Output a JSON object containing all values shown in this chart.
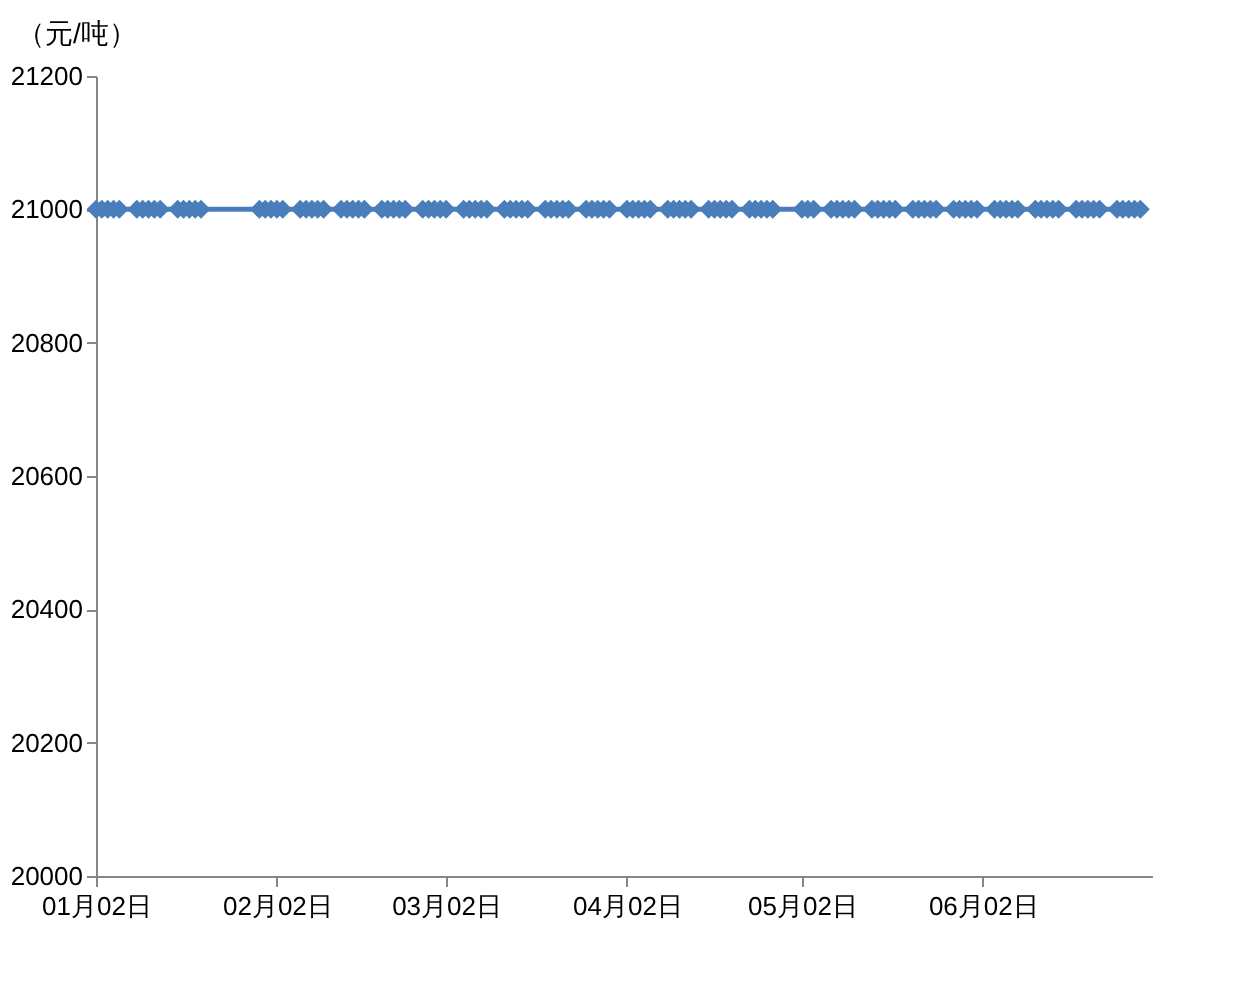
{
  "chart_data": {
    "type": "line",
    "ylabel": "（元/吨）",
    "marker": "diamond",
    "line_style": "solid",
    "grid": false,
    "x": [
      "--01-02",
      "--01-03",
      "--01-04",
      "--01-05",
      "--01-06",
      "--01-09",
      "--01-10",
      "--01-11",
      "--01-12",
      "--01-13",
      "--01-16",
      "--01-17",
      "--01-18",
      "--01-19",
      "--01-20",
      "--01-30",
      "--01-31",
      "--02-01",
      "--02-02",
      "--02-03",
      "--02-06",
      "--02-07",
      "--02-08",
      "--02-09",
      "--02-10",
      "--02-13",
      "--02-14",
      "--02-15",
      "--02-16",
      "--02-17",
      "--02-20",
      "--02-21",
      "--02-22",
      "--02-23",
      "--02-24",
      "--02-27",
      "--02-28",
      "--02-29",
      "--03-01",
      "--03-02",
      "--03-05",
      "--03-06",
      "--03-07",
      "--03-08",
      "--03-09",
      "--03-12",
      "--03-13",
      "--03-14",
      "--03-15",
      "--03-16",
      "--03-19",
      "--03-20",
      "--03-21",
      "--03-22",
      "--03-23",
      "--03-26",
      "--03-27",
      "--03-28",
      "--03-29",
      "--03-30",
      "--04-02",
      "--04-03",
      "--04-04",
      "--04-05",
      "--04-06",
      "--04-09",
      "--04-10",
      "--04-11",
      "--04-12",
      "--04-13",
      "--04-16",
      "--04-17",
      "--04-18",
      "--04-19",
      "--04-20",
      "--04-23",
      "--04-24",
      "--04-25",
      "--04-26",
      "--04-27",
      "--05-02",
      "--05-03",
      "--05-04",
      "--05-07",
      "--05-08",
      "--05-09",
      "--05-10",
      "--05-11",
      "--05-14",
      "--05-15",
      "--05-16",
      "--05-17",
      "--05-18",
      "--05-21",
      "--05-22",
      "--05-23",
      "--05-24",
      "--05-25",
      "--05-28",
      "--05-29",
      "--05-30",
      "--05-31",
      "--06-01",
      "--06-04",
      "--06-05",
      "--06-06",
      "--06-07",
      "--06-08",
      "--06-11",
      "--06-12",
      "--06-13",
      "--06-14",
      "--06-15",
      "--06-18",
      "--06-19",
      "--06-20",
      "--06-21",
      "--06-22",
      "--06-25",
      "--06-26",
      "--06-27",
      "--06-28",
      "--06-29"
    ],
    "series": [
      {
        "color": "#4a7ebb",
        "values": [
          21000,
          21000,
          21000,
          21000,
          21000,
          21000,
          21000,
          21000,
          21000,
          21000,
          21000,
          21000,
          21000,
          21000,
          21000,
          21000,
          21000,
          21000,
          21000,
          21000,
          21000,
          21000,
          21000,
          21000,
          21000,
          21000,
          21000,
          21000,
          21000,
          21000,
          21000,
          21000,
          21000,
          21000,
          21000,
          21000,
          21000,
          21000,
          21000,
          21000,
          21000,
          21000,
          21000,
          21000,
          21000,
          21000,
          21000,
          21000,
          21000,
          21000,
          21000,
          21000,
          21000,
          21000,
          21000,
          21000,
          21000,
          21000,
          21000,
          21000,
          21000,
          21000,
          21000,
          21000,
          21000,
          21000,
          21000,
          21000,
          21000,
          21000,
          21000,
          21000,
          21000,
          21000,
          21000,
          21000,
          21000,
          21000,
          21000,
          21000,
          21000,
          21000,
          21000,
          21000,
          21000,
          21000,
          21000,
          21000,
          21000,
          21000,
          21000,
          21000,
          21000,
          21000,
          21000,
          21000,
          21000,
          21000,
          21000,
          21000,
          21000,
          21000,
          21000,
          21000,
          21000,
          21000,
          21000,
          21000,
          21000,
          21000,
          21000,
          21000,
          21000,
          21000,
          21000,
          21000,
          21000,
          21000,
          21000,
          21000,
          21000,
          21000,
          21000
        ]
      }
    ],
    "xlim": [
      "--01-02",
      "--07-01"
    ],
    "xticks": [
      {
        "value": "--01-02",
        "label": "01月02日"
      },
      {
        "value": "--02-02",
        "label": "02月02日"
      },
      {
        "value": "--03-02",
        "label": "03月02日"
      },
      {
        "value": "--04-02",
        "label": "04月02日"
      },
      {
        "value": "--05-02",
        "label": "05月02日"
      },
      {
        "value": "--06-02",
        "label": "06月02日"
      }
    ],
    "ylim": [
      20000,
      21200
    ],
    "yticks": [
      20000,
      20200,
      20400,
      20600,
      20800,
      21000,
      21200
    ]
  }
}
